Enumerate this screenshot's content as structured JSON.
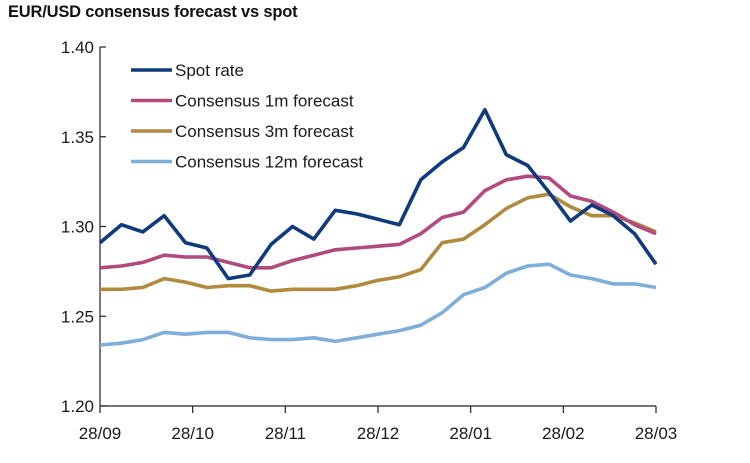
{
  "chart_data": {
    "type": "line",
    "title": "EUR/USD consensus forecast vs spot",
    "xlabel": "",
    "ylabel": "",
    "ylim": [
      1.2,
      1.4
    ],
    "yticks": [
      "1.20",
      "1.25",
      "1.30",
      "1.35",
      "1.40"
    ],
    "ytick_values": [
      1.2,
      1.25,
      1.3,
      1.35,
      1.4
    ],
    "xticks": [
      "28/09",
      "28/10",
      "28/11",
      "28/12",
      "28/01",
      "28/02",
      "28/03"
    ],
    "legend_position": "top-left",
    "grid": false,
    "series": [
      {
        "name": "Spot rate",
        "color": "#0f3a7d",
        "values": [
          1.291,
          1.301,
          1.297,
          1.306,
          1.291,
          1.288,
          1.271,
          1.273,
          1.29,
          1.3,
          1.293,
          1.309,
          1.307,
          1.304,
          1.301,
          1.326,
          1.336,
          1.344,
          1.365,
          1.34,
          1.334,
          1.319,
          1.303,
          1.312,
          1.306,
          1.296,
          1.279
        ]
      },
      {
        "name": "Consensus 1m forecast",
        "color": "#b14a7e",
        "values": [
          1.277,
          1.278,
          1.28,
          1.284,
          1.283,
          1.283,
          1.28,
          1.277,
          1.277,
          1.281,
          1.284,
          1.287,
          1.288,
          1.289,
          1.29,
          1.296,
          1.305,
          1.308,
          1.32,
          1.326,
          1.328,
          1.327,
          1.317,
          1.314,
          1.308,
          1.301,
          1.296
        ]
      },
      {
        "name": "Consensus 3m forecast",
        "color": "#b18a3f",
        "values": [
          1.265,
          1.265,
          1.266,
          1.271,
          1.269,
          1.266,
          1.267,
          1.267,
          1.264,
          1.265,
          1.265,
          1.265,
          1.267,
          1.27,
          1.272,
          1.276,
          1.291,
          1.293,
          1.301,
          1.31,
          1.316,
          1.318,
          1.311,
          1.306,
          1.306,
          1.302,
          1.297
        ]
      },
      {
        "name": "Consensus 12m forecast",
        "color": "#7eaed9",
        "values": [
          1.234,
          1.235,
          1.237,
          1.241,
          1.24,
          1.241,
          1.241,
          1.238,
          1.237,
          1.237,
          1.238,
          1.236,
          1.238,
          1.24,
          1.242,
          1.245,
          1.252,
          1.262,
          1.266,
          1.274,
          1.278,
          1.279,
          1.273,
          1.271,
          1.268,
          1.268,
          1.266
        ]
      }
    ]
  }
}
